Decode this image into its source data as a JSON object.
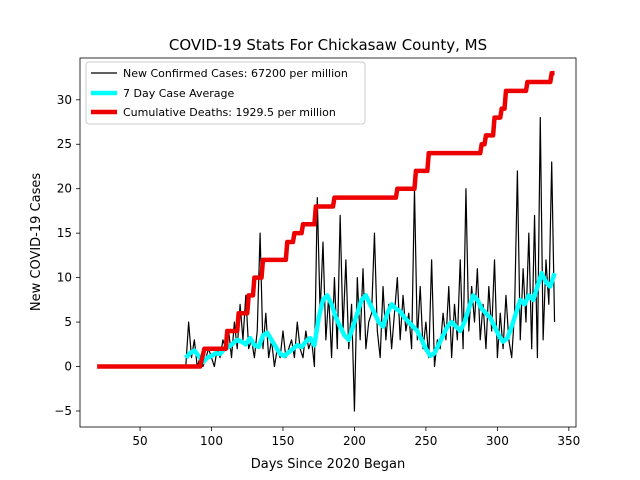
{
  "chart_data": {
    "type": "line",
    "title": "COVID-19 Stats For Chickasaw County, MS",
    "xlabel": "Days Since 2020 Began",
    "ylabel": "New COVID-19 Cases",
    "xlim": [
      8,
      355
    ],
    "ylim": [
      -6.8,
      34.7
    ],
    "x_ticks": [
      50,
      100,
      150,
      200,
      250,
      300,
      350
    ],
    "y_ticks": [
      -5,
      0,
      5,
      10,
      15,
      20,
      25,
      30
    ],
    "grid": false,
    "legend_position": "upper-left",
    "series": [
      {
        "name": "New Confirmed Cases: 67200 per million",
        "color": "#000000",
        "line_width": "thin",
        "points": [
          [
            82,
            0
          ],
          [
            84,
            5
          ],
          [
            86,
            1
          ],
          [
            88,
            3
          ],
          [
            90,
            0
          ],
          [
            92,
            1
          ],
          [
            94,
            0
          ],
          [
            96,
            1
          ],
          [
            98,
            2
          ],
          [
            100,
            1
          ],
          [
            102,
            0
          ],
          [
            104,
            2
          ],
          [
            106,
            1
          ],
          [
            108,
            3
          ],
          [
            110,
            2
          ],
          [
            112,
            4
          ],
          [
            114,
            1
          ],
          [
            116,
            5
          ],
          [
            118,
            2
          ],
          [
            120,
            7
          ],
          [
            122,
            3
          ],
          [
            124,
            8
          ],
          [
            126,
            2
          ],
          [
            128,
            3
          ],
          [
            130,
            1
          ],
          [
            132,
            4
          ],
          [
            134,
            15
          ],
          [
            136,
            2
          ],
          [
            138,
            6
          ],
          [
            140,
            1
          ],
          [
            142,
            3
          ],
          [
            144,
            0
          ],
          [
            146,
            2
          ],
          [
            148,
            1
          ],
          [
            150,
            4
          ],
          [
            152,
            1
          ],
          [
            154,
            2
          ],
          [
            156,
            3
          ],
          [
            158,
            1
          ],
          [
            160,
            5
          ],
          [
            162,
            2
          ],
          [
            164,
            1
          ],
          [
            166,
            4
          ],
          [
            168,
            2
          ],
          [
            170,
            3
          ],
          [
            172,
            0
          ],
          [
            174,
            19
          ],
          [
            176,
            6
          ],
          [
            178,
            14
          ],
          [
            180,
            3
          ],
          [
            182,
            8
          ],
          [
            184,
            1
          ],
          [
            186,
            10
          ],
          [
            188,
            2
          ],
          [
            190,
            17
          ],
          [
            192,
            4
          ],
          [
            194,
            12
          ],
          [
            196,
            2
          ],
          [
            198,
            7
          ],
          [
            200,
            -5
          ],
          [
            202,
            10
          ],
          [
            204,
            3
          ],
          [
            206,
            11
          ],
          [
            208,
            2
          ],
          [
            210,
            5
          ],
          [
            212,
            6
          ],
          [
            214,
            15
          ],
          [
            216,
            4
          ],
          [
            218,
            1
          ],
          [
            220,
            9
          ],
          [
            222,
            3
          ],
          [
            224,
            7
          ],
          [
            226,
            2
          ],
          [
            228,
            6
          ],
          [
            230,
            10
          ],
          [
            232,
            3
          ],
          [
            234,
            8
          ],
          [
            236,
            4
          ],
          [
            238,
            6
          ],
          [
            240,
            2
          ],
          [
            242,
            20
          ],
          [
            244,
            3
          ],
          [
            246,
            9
          ],
          [
            248,
            2
          ],
          [
            250,
            5
          ],
          [
            252,
            1
          ],
          [
            254,
            12
          ],
          [
            256,
            0
          ],
          [
            258,
            3
          ],
          [
            260,
            2
          ],
          [
            262,
            6
          ],
          [
            264,
            3
          ],
          [
            266,
            9
          ],
          [
            268,
            1
          ],
          [
            270,
            7
          ],
          [
            272,
            3
          ],
          [
            274,
            12
          ],
          [
            276,
            2
          ],
          [
            278,
            20
          ],
          [
            280,
            4
          ],
          [
            282,
            9
          ],
          [
            284,
            5
          ],
          [
            286,
            11
          ],
          [
            288,
            3
          ],
          [
            290,
            7
          ],
          [
            292,
            2
          ],
          [
            294,
            9
          ],
          [
            296,
            4
          ],
          [
            298,
            12
          ],
          [
            300,
            1
          ],
          [
            302,
            6
          ],
          [
            304,
            2
          ],
          [
            306,
            8
          ],
          [
            308,
            3
          ],
          [
            310,
            1
          ],
          [
            312,
            6
          ],
          [
            314,
            22
          ],
          [
            316,
            3
          ],
          [
            318,
            11
          ],
          [
            320,
            5
          ],
          [
            322,
            15
          ],
          [
            324,
            2
          ],
          [
            326,
            17
          ],
          [
            328,
            1
          ],
          [
            330,
            28
          ],
          [
            332,
            3
          ],
          [
            334,
            12
          ],
          [
            336,
            7
          ],
          [
            338,
            23
          ],
          [
            340,
            5
          ]
        ]
      },
      {
        "name": "7 Day Case Average",
        "color": "#00ffff",
        "line_width": "thick",
        "points": [
          [
            82,
            1
          ],
          [
            85,
            1.5
          ],
          [
            88,
            1.8
          ],
          [
            91,
            1.2
          ],
          [
            94,
            0.5
          ],
          [
            97,
            1
          ],
          [
            100,
            1.2
          ],
          [
            103,
            1.5
          ],
          [
            106,
            1.4
          ],
          [
            109,
            2
          ],
          [
            112,
            2.2
          ],
          [
            115,
            2.6
          ],
          [
            118,
            3
          ],
          [
            121,
            2.8
          ],
          [
            124,
            2.5
          ],
          [
            127,
            3.2
          ],
          [
            130,
            2.4
          ],
          [
            133,
            2.2
          ],
          [
            136,
            3.5
          ],
          [
            139,
            3.8
          ],
          [
            142,
            3
          ],
          [
            145,
            2.2
          ],
          [
            148,
            1.4
          ],
          [
            151,
            1.2
          ],
          [
            154,
            1.6
          ],
          [
            157,
            2
          ],
          [
            160,
            2.4
          ],
          [
            163,
            2.2
          ],
          [
            166,
            2.8
          ],
          [
            169,
            3.2
          ],
          [
            172,
            2.4
          ],
          [
            175,
            5.5
          ],
          [
            178,
            7.5
          ],
          [
            181,
            8
          ],
          [
            184,
            7
          ],
          [
            187,
            5.5
          ],
          [
            190,
            4.5
          ],
          [
            193,
            3.5
          ],
          [
            196,
            3
          ],
          [
            199,
            4.5
          ],
          [
            202,
            6
          ],
          [
            205,
            7.5
          ],
          [
            208,
            8
          ],
          [
            211,
            7
          ],
          [
            214,
            6
          ],
          [
            217,
            5
          ],
          [
            220,
            4.5
          ],
          [
            223,
            6
          ],
          [
            226,
            7
          ],
          [
            229,
            6.5
          ],
          [
            232,
            6.2
          ],
          [
            235,
            5.5
          ],
          [
            238,
            5
          ],
          [
            241,
            4.5
          ],
          [
            244,
            4
          ],
          [
            247,
            3
          ],
          [
            250,
            2
          ],
          [
            253,
            1.2
          ],
          [
            256,
            1.5
          ],
          [
            259,
            2.5
          ],
          [
            262,
            3.5
          ],
          [
            265,
            4.5
          ],
          [
            268,
            5
          ],
          [
            271,
            4.5
          ],
          [
            274,
            4
          ],
          [
            277,
            5
          ],
          [
            280,
            6.5
          ],
          [
            283,
            8
          ],
          [
            286,
            7.5
          ],
          [
            289,
            6.5
          ],
          [
            292,
            6
          ],
          [
            295,
            5.5
          ],
          [
            298,
            4.5
          ],
          [
            301,
            3.5
          ],
          [
            304,
            2.8
          ],
          [
            307,
            3.2
          ],
          [
            310,
            4.5
          ],
          [
            313,
            6
          ],
          [
            316,
            7.5
          ],
          [
            319,
            7
          ],
          [
            322,
            8
          ],
          [
            325,
            7.5
          ],
          [
            328,
            9
          ],
          [
            331,
            10.5
          ],
          [
            334,
            9.5
          ],
          [
            337,
            9
          ],
          [
            340,
            10.5
          ]
        ]
      },
      {
        "name": "Cumulative Deaths: 1929.5 per million",
        "color": "#ee0000",
        "line_width": "thick",
        "step": true,
        "points": [
          [
            20,
            0
          ],
          [
            92,
            0
          ],
          [
            95,
            2
          ],
          [
            110,
            2
          ],
          [
            111,
            4
          ],
          [
            118,
            4
          ],
          [
            119,
            6
          ],
          [
            125,
            6
          ],
          [
            126,
            8
          ],
          [
            129,
            8
          ],
          [
            130,
            10
          ],
          [
            135,
            10
          ],
          [
            136,
            12
          ],
          [
            152,
            12
          ],
          [
            153,
            14
          ],
          [
            157,
            14
          ],
          [
            158,
            15
          ],
          [
            163,
            15
          ],
          [
            164,
            16
          ],
          [
            172,
            16
          ],
          [
            173,
            18
          ],
          [
            185,
            18
          ],
          [
            186,
            19
          ],
          [
            229,
            19
          ],
          [
            230,
            20
          ],
          [
            242,
            20
          ],
          [
            243,
            22
          ],
          [
            251,
            22
          ],
          [
            252,
            24
          ],
          [
            288,
            24
          ],
          [
            289,
            25
          ],
          [
            291,
            25
          ],
          [
            292,
            26
          ],
          [
            297,
            26
          ],
          [
            298,
            28
          ],
          [
            302,
            28
          ],
          [
            303,
            29
          ],
          [
            305,
            29
          ],
          [
            306,
            31
          ],
          [
            320,
            31
          ],
          [
            321,
            32
          ],
          [
            337,
            32
          ],
          [
            338,
            33
          ],
          [
            340,
            33
          ]
        ]
      }
    ]
  }
}
